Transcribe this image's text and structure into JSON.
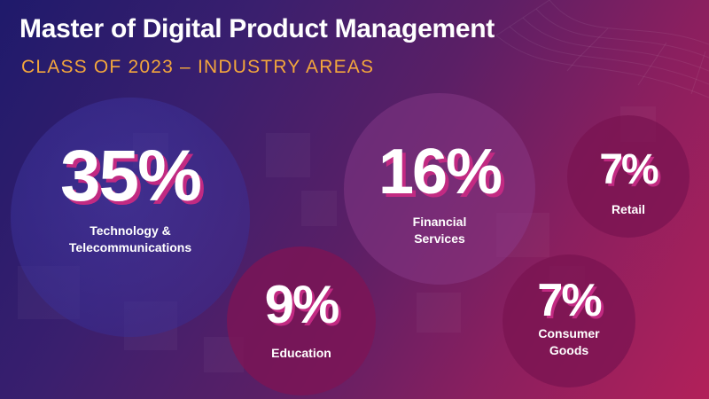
{
  "header": {
    "title": "Master of Digital Product Management",
    "subtitle": "CLASS OF 2023 – INDUSTRY AREAS"
  },
  "colors": {
    "title": "#ffffff",
    "subtitle": "#f3a63c",
    "percent_shadow": "#c22a82",
    "background_start": "#1f1a6b",
    "background_end": "#b2205a"
  },
  "stats": [
    {
      "id": "technology",
      "percent": "35%",
      "label_lines": [
        "Technology &",
        "Telecommunications"
      ]
    },
    {
      "id": "financial",
      "percent": "16%",
      "label_lines": [
        "Financial",
        "Services"
      ]
    },
    {
      "id": "retail",
      "percent": "7%",
      "label_lines": [
        "Retail"
      ]
    },
    {
      "id": "education",
      "percent": "9%",
      "label_lines": [
        "Education"
      ]
    },
    {
      "id": "consumer",
      "percent": "7%",
      "label_lines": [
        "Consumer",
        "Goods"
      ]
    }
  ]
}
